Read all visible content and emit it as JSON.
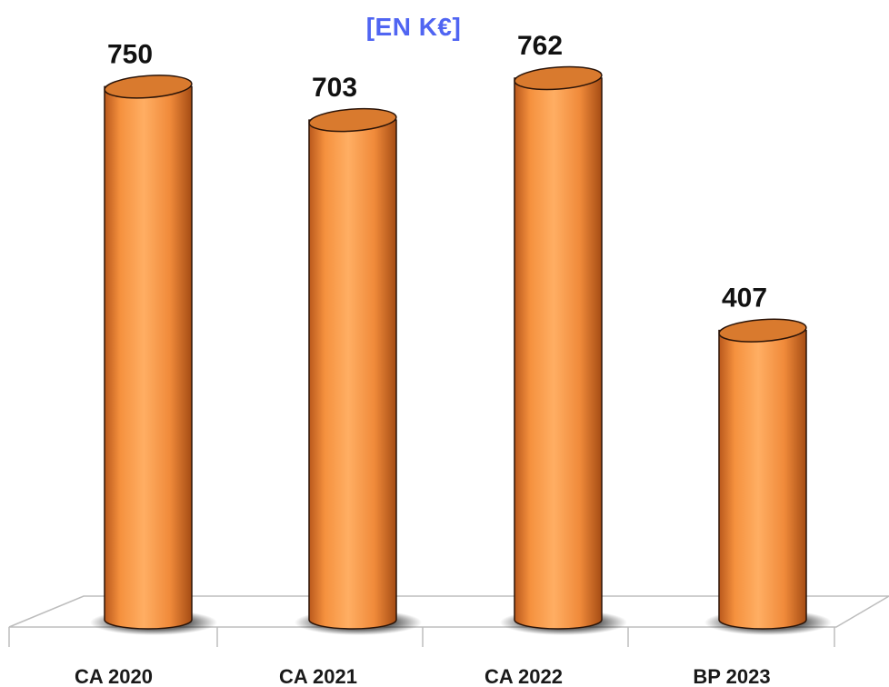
{
  "chart_data": {
    "type": "bar",
    "title_clipped": "",
    "subtitle": "[EN K€]",
    "categories": [
      "CA 2020",
      "CA 2021",
      "CA 2022",
      "BP 2023"
    ],
    "series": [
      {
        "name": "",
        "values": [
          750,
          703,
          762,
          407
        ]
      }
    ],
    "data_labels": [
      "750",
      "703",
      "762",
      "407"
    ],
    "ylim": [
      0,
      800
    ],
    "grid": false,
    "legend": "none",
    "style": "3d-cylinder",
    "colors": {
      "bar_light": "#ffae63",
      "bar_mid": "#f5913e",
      "bar_dark": "#b9581c",
      "bar_top": "#d97a2e",
      "title_color": "#5065f2"
    }
  }
}
